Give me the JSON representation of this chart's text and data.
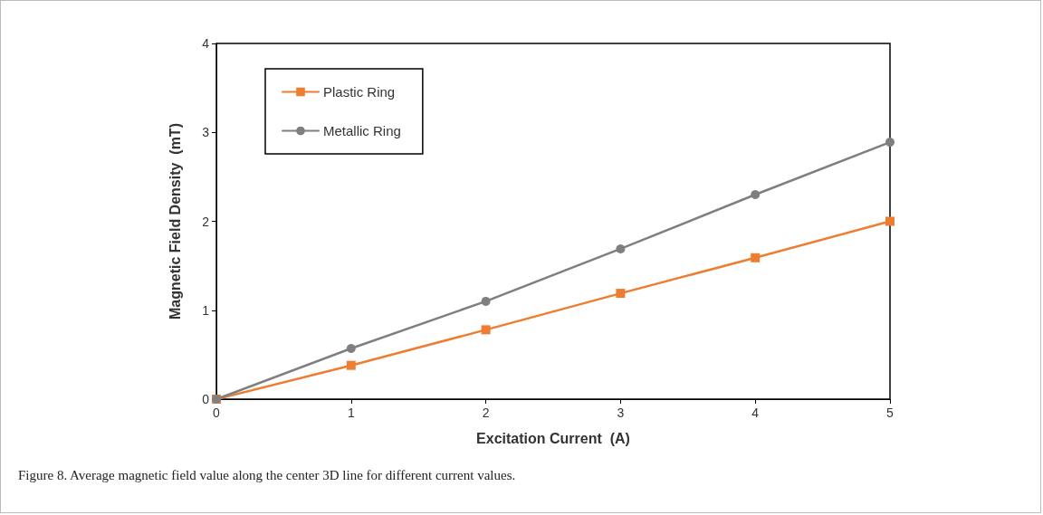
{
  "chart_data": {
    "type": "line",
    "xlabel": "Excitation Current  (A)",
    "ylabel": "Magnetic Field Density  (mT)",
    "x": [
      0,
      1,
      2,
      3,
      4,
      5
    ],
    "series": [
      {
        "name": "Plastic Ring",
        "color": "#ed7d31",
        "marker": "square",
        "values": [
          0,
          0.38,
          0.78,
          1.19,
          1.59,
          2.0
        ]
      },
      {
        "name": "Metallic Ring",
        "color": "#7f7f7f",
        "marker": "circle",
        "values": [
          0,
          0.57,
          1.1,
          1.69,
          2.3,
          2.89
        ]
      }
    ],
    "xlim": [
      0,
      5
    ],
    "xticks": [
      0,
      1,
      2,
      3,
      4,
      5
    ],
    "ylim": [
      0,
      4
    ],
    "yticks": [
      0,
      1,
      2,
      3,
      4
    ],
    "grid": false,
    "legend": "top left",
    "line_style": "solid",
    "annotations": [
      "Figure 8. Average magnetic field value along the center 3D line for different current values."
    ]
  }
}
